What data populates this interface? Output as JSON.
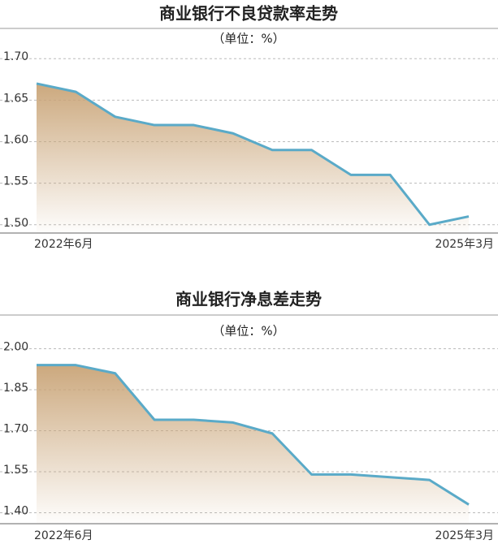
{
  "chart_data": [
    {
      "type": "area",
      "title": "商业银行不良贷款率走势",
      "subtitle": "（单位：%）",
      "categories": [
        "2022年6月",
        null,
        null,
        null,
        null,
        null,
        null,
        null,
        null,
        null,
        null,
        "2025年3月"
      ],
      "values": [
        1.67,
        1.66,
        1.63,
        1.62,
        1.62,
        1.61,
        1.59,
        1.59,
        1.56,
        1.56,
        1.5,
        1.51
      ],
      "color": "#5aaac8",
      "fill": "#c9a477",
      "ylim": [
        1.49,
        1.71
      ],
      "yticks": [
        {
          "value": 1.5,
          "label": "1.50"
        },
        {
          "value": 1.55,
          "label": "1.55"
        },
        {
          "value": 1.6,
          "label": "1.60"
        },
        {
          "value": 1.65,
          "label": "1.65"
        },
        {
          "value": 1.7,
          "label": "1.70"
        }
      ],
      "grid": true
    },
    {
      "type": "area",
      "title": "商业银行净息差走势",
      "subtitle": "（单位：%）",
      "categories": [
        "2022年6月",
        null,
        null,
        null,
        null,
        null,
        null,
        null,
        null,
        null,
        null,
        "2025年3月"
      ],
      "values": [
        1.94,
        1.94,
        1.91,
        1.74,
        1.74,
        1.73,
        1.69,
        1.54,
        1.54,
        1.53,
        1.52,
        1.43
      ],
      "color": "#5aaac8",
      "fill": "#c9a477",
      "ylim": [
        1.36,
        2.04
      ],
      "yticks": [
        {
          "value": 1.4,
          "label": "1.40"
        },
        {
          "value": 1.55,
          "label": "1.55"
        },
        {
          "value": 1.7,
          "label": "1.70"
        },
        {
          "value": 1.85,
          "label": "1.85"
        },
        {
          "value": 2,
          "label": "2.00"
        }
      ],
      "grid": true
    }
  ]
}
